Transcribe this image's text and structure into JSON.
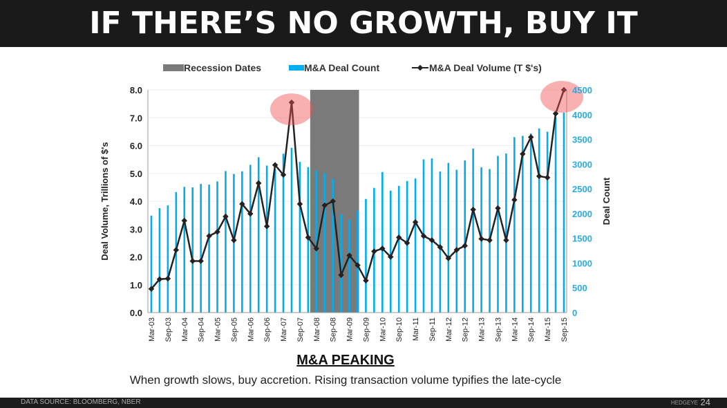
{
  "header": {
    "title": "IF THERE’S NO GROWTH, BUY IT"
  },
  "chart_data": {
    "type": "bar+line",
    "legend": {
      "position": "top",
      "entries": [
        "Recession Dates",
        "M&A Deal Count",
        "M&A Deal Volume (T $'s)"
      ]
    },
    "ylabel_left": "Deal Volume, Trillions of $'s",
    "ylabel_right": "Deal Count",
    "ylim_left": [
      0,
      8
    ],
    "ylim_right": [
      0,
      4500
    ],
    "yticks_left": [
      "0.0",
      "1.0",
      "2.0",
      "3.0",
      "4.0",
      "5.0",
      "6.0",
      "7.0",
      "8.0"
    ],
    "yticks_right": [
      "0",
      "500",
      "1000",
      "1500",
      "2000",
      "2500",
      "3000",
      "3500",
      "4000",
      "4500"
    ],
    "x": [
      "Mar-03",
      "Jun-03",
      "Sep-03",
      "Dec-03",
      "Mar-04",
      "Jun-04",
      "Sep-04",
      "Dec-04",
      "Mar-05",
      "Jun-05",
      "Sep-05",
      "Dec-05",
      "Mar-06",
      "Jun-06",
      "Sep-06",
      "Dec-06",
      "Mar-07",
      "Jun-07",
      "Sep-07",
      "Dec-07",
      "Mar-08",
      "Jun-08",
      "Sep-08",
      "Dec-08",
      "Mar-09",
      "Jun-09",
      "Sep-09",
      "Dec-09",
      "Mar-10",
      "Jun-10",
      "Sep-10",
      "Dec-10",
      "Mar-11",
      "Jun-11",
      "Sep-11",
      "Dec-11",
      "Mar-12",
      "Jun-12",
      "Sep-12",
      "Dec-12",
      "Mar-13",
      "Jun-13",
      "Sep-13",
      "Dec-13",
      "Mar-14",
      "Jun-14",
      "Sep-14",
      "Dec-14",
      "Mar-15",
      "Jun-15",
      "Sep-15"
    ],
    "xtick_labels": [
      "Mar-03",
      "Sep-03",
      "Mar-04",
      "Sep-04",
      "Mar-05",
      "Sep-05",
      "Mar-06",
      "Sep-06",
      "Mar-07",
      "Sep-07",
      "Mar-08",
      "Sep-08",
      "Mar-09",
      "Sep-09",
      "Mar-10",
      "Sep-10",
      "Mar-11",
      "Sep-11",
      "Mar-12",
      "Sep-12",
      "Mar-13",
      "Sep-13",
      "Mar-14",
      "Sep-14",
      "Mar-15",
      "Sep-15"
    ],
    "series": [
      {
        "name": "M&A Deal Count",
        "type": "bar",
        "axis": "right",
        "color": "#00aeef",
        "values": [
          1960,
          2110,
          2165,
          2435,
          2540,
          2530,
          2600,
          2585,
          2650,
          2860,
          2800,
          2855,
          2985,
          3140,
          2970,
          2900,
          3210,
          3330,
          3045,
          2940,
          2870,
          2820,
          2700,
          1985,
          1875,
          2055,
          2295,
          2520,
          2840,
          2465,
          2560,
          2660,
          2710,
          3095,
          3115,
          2850,
          3025,
          2885,
          3075,
          3315,
          2935,
          2900,
          3165,
          3215,
          3545,
          3570,
          3620,
          3720,
          3655,
          3950,
          4040
        ]
      },
      {
        "name": "M&A Deal Volume (T $'s)",
        "type": "line",
        "axis": "left",
        "color": "#222222",
        "values": [
          0.85,
          1.2,
          1.22,
          2.25,
          3.3,
          1.85,
          1.85,
          2.75,
          2.9,
          3.45,
          2.6,
          3.9,
          3.55,
          4.65,
          3.1,
          5.3,
          4.95,
          7.55,
          3.9,
          2.7,
          2.3,
          3.85,
          4.0,
          1.35,
          2.05,
          1.7,
          1.15,
          2.2,
          2.3,
          2.0,
          2.7,
          2.5,
          3.25,
          2.75,
          2.6,
          2.35,
          1.95,
          2.25,
          2.4,
          3.7,
          2.65,
          2.6,
          3.75,
          2.6,
          4.05,
          5.7,
          6.3,
          4.9,
          4.85,
          7.15,
          8.0
        ]
      }
    ],
    "recession": {
      "name": "Recession Dates",
      "start": "Dec-07",
      "end": "Jun-09",
      "color": "#7a7a7a"
    },
    "highlights": [
      "Jun-07",
      "Sep-15"
    ],
    "grid": true
  },
  "subtitle": "M&A PEAKING",
  "caption": "When growth slows, buy accretion.  Rising transaction volume typifies the late-cycle",
  "footer": {
    "source": "DATA SOURCE:  BLOOMBERG, NBER",
    "brand": "HEDGEYE",
    "page": "24"
  }
}
